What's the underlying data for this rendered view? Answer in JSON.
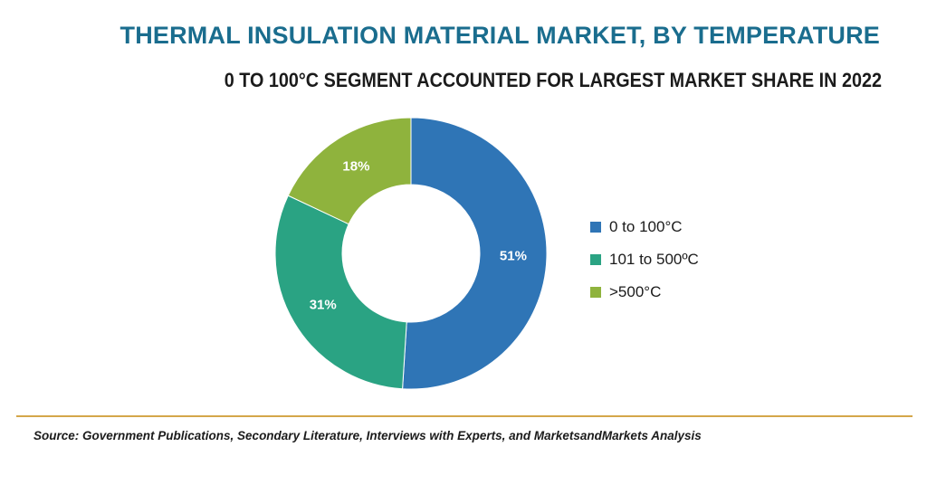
{
  "chart_data": {
    "type": "pie",
    "title": "THERMAL INSULATION MATERIAL MARKET, BY TEMPERATURE",
    "subtitle": "0 TO 100°C SEGMENT ACCOUNTED FOR LARGEST MARKET SHARE IN 2022",
    "categories": [
      "0 to 100°C",
      "101 to 500ºC",
      ">500°C"
    ],
    "values": [
      51,
      31,
      18
    ],
    "value_labels": [
      "51%",
      "31%",
      "18%"
    ],
    "colors": [
      "#2f75b6",
      "#2aa383",
      "#8fb33d"
    ],
    "donut": true,
    "legend_position": "right"
  },
  "source": "Source: Government Publications, Secondary Literature, Interviews with Experts, and MarketsandMarkets Analysis",
  "colors": {
    "title": "#1a6d8e",
    "divider": "#d4a64a"
  }
}
